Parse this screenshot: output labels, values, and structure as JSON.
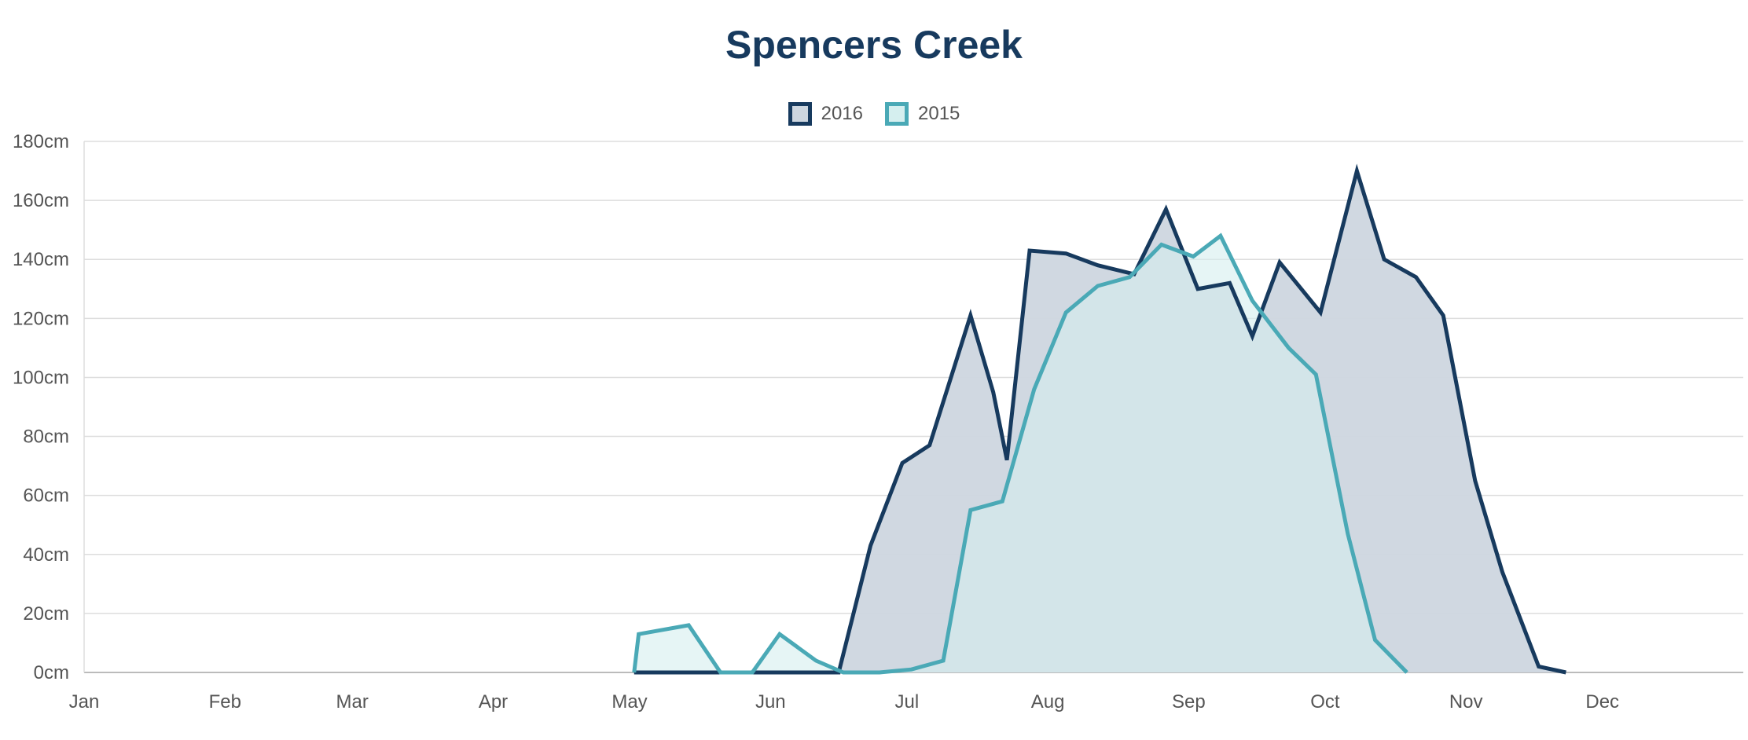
{
  "chart_data": {
    "type": "area",
    "title": "Spencers Creek",
    "x_ticks": [
      "Jan",
      "Feb",
      "Mar",
      "Apr",
      "May",
      "Jun",
      "Jul",
      "Aug",
      "Sep",
      "Oct",
      "Nov",
      "Dec"
    ],
    "y_ticks": [
      "0cm",
      "20cm",
      "40cm",
      "60cm",
      "80cm",
      "100cm",
      "120cm",
      "140cm",
      "160cm",
      "180cm"
    ],
    "ylim": [
      0,
      180
    ],
    "xlim": [
      0,
      365
    ],
    "x_unit": "day of year",
    "grid": true,
    "legend_position": "top-center",
    "series": [
      {
        "name": "2016",
        "color": "#173a5e",
        "fill": "#cdd6df",
        "points": [
          [
            121,
            0
          ],
          [
            136,
            0
          ],
          [
            151,
            0
          ],
          [
            166,
            0
          ],
          [
            173,
            43
          ],
          [
            180,
            71
          ],
          [
            186,
            77
          ],
          [
            195,
            121
          ],
          [
            200,
            95
          ],
          [
            203,
            72
          ],
          [
            208,
            143
          ],
          [
            216,
            142
          ],
          [
            223,
            138
          ],
          [
            231,
            135
          ],
          [
            238,
            157
          ],
          [
            245,
            130
          ],
          [
            252,
            132
          ],
          [
            257,
            114
          ],
          [
            263,
            139
          ],
          [
            272,
            122
          ],
          [
            280,
            170
          ],
          [
            286,
            140
          ],
          [
            293,
            134
          ],
          [
            299,
            121
          ],
          [
            306,
            65
          ],
          [
            312,
            34
          ],
          [
            320,
            2
          ],
          [
            326,
            0
          ]
        ]
      },
      {
        "name": "2015",
        "color": "#4aa9b6",
        "fill": "#d5efef",
        "points": [
          [
            121,
            0
          ],
          [
            122,
            13
          ],
          [
            133,
            16
          ],
          [
            140,
            0
          ],
          [
            147,
            0
          ],
          [
            153,
            13
          ],
          [
            161,
            4
          ],
          [
            167,
            0
          ],
          [
            175,
            0
          ],
          [
            182,
            1
          ],
          [
            189,
            4
          ],
          [
            195,
            55
          ],
          [
            202,
            58
          ],
          [
            209,
            96
          ],
          [
            216,
            122
          ],
          [
            223,
            131
          ],
          [
            230,
            134
          ],
          [
            237,
            145
          ],
          [
            244,
            141
          ],
          [
            250,
            148
          ],
          [
            257,
            126
          ],
          [
            265,
            110
          ],
          [
            271,
            101
          ],
          [
            278,
            47
          ],
          [
            284,
            11
          ],
          [
            291,
            0
          ]
        ]
      }
    ]
  }
}
